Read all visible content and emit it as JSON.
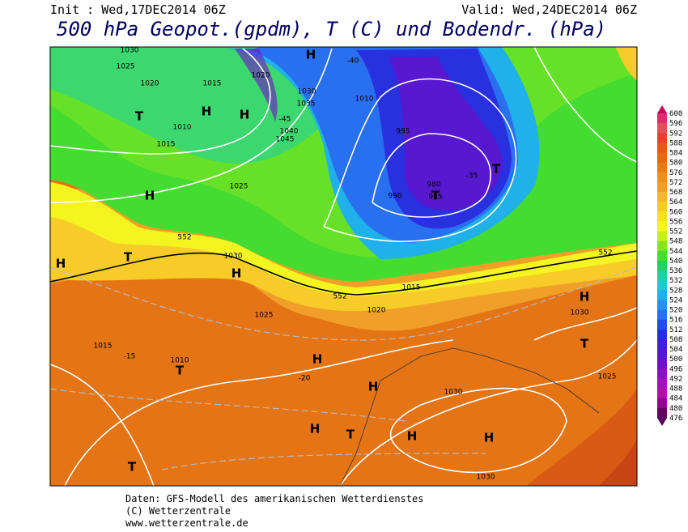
{
  "header": {
    "init": "Init : Wed,17DEC2014 06Z",
    "valid": "Valid: Wed,24DEC2014 06Z",
    "title": "500 hPa Geopot.(gpdm), T (C) und Bodendr. (hPa)"
  },
  "legend": {
    "levels": [
      600,
      596,
      592,
      588,
      584,
      580,
      576,
      572,
      568,
      564,
      560,
      556,
      552,
      548,
      544,
      540,
      536,
      532,
      528,
      524,
      520,
      516,
      512,
      508,
      504,
      500,
      496,
      492,
      488,
      484,
      480,
      476
    ],
    "colors": [
      "#c8005a",
      "#de2c6c",
      "#e4505a",
      "#e84030",
      "#e85818",
      "#e46a10",
      "#e87c14",
      "#ec9020",
      "#f0a028",
      "#f4b830",
      "#f8cc28",
      "#fae020",
      "#f4f420",
      "#c8ee20",
      "#84e620",
      "#44dc30",
      "#20d060",
      "#20d0a0",
      "#20c8d0",
      "#20b0ea",
      "#2890f0",
      "#2870f0",
      "#2050e8",
      "#2830e0",
      "#4020d8",
      "#5818d0",
      "#7010c8",
      "#8810c0",
      "#a010b8",
      "#b010a8",
      "#900090",
      "#600060"
    ]
  },
  "map": {
    "labels": [
      "1030",
      "1025",
      "1020",
      "1015",
      "H",
      "H",
      "T",
      "1010",
      "1015",
      "1020",
      "H",
      "1040",
      "1045",
      "1035",
      "1030",
      "-45",
      "-40",
      "1010",
      "995",
      "990",
      "985",
      "980",
      "T",
      "T",
      "-35",
      "H",
      "1025",
      "552",
      "T",
      "H",
      "1030",
      "552",
      "1025",
      "1015",
      "T",
      "1010",
      "H",
      "H",
      "-20",
      "-15",
      "1030",
      "H",
      "T",
      "H",
      "H",
      "T",
      "1030",
      "1025",
      "T",
      "H",
      "1030",
      "552",
      "H",
      "1020",
      "1015"
    ]
  },
  "footer": {
    "line1": "Daten: GFS-Modell des amerikanischen Wetterdienstes",
    "line2": "(C) Wetterzentrale",
    "line3": "www.wetterzentrale.de"
  }
}
